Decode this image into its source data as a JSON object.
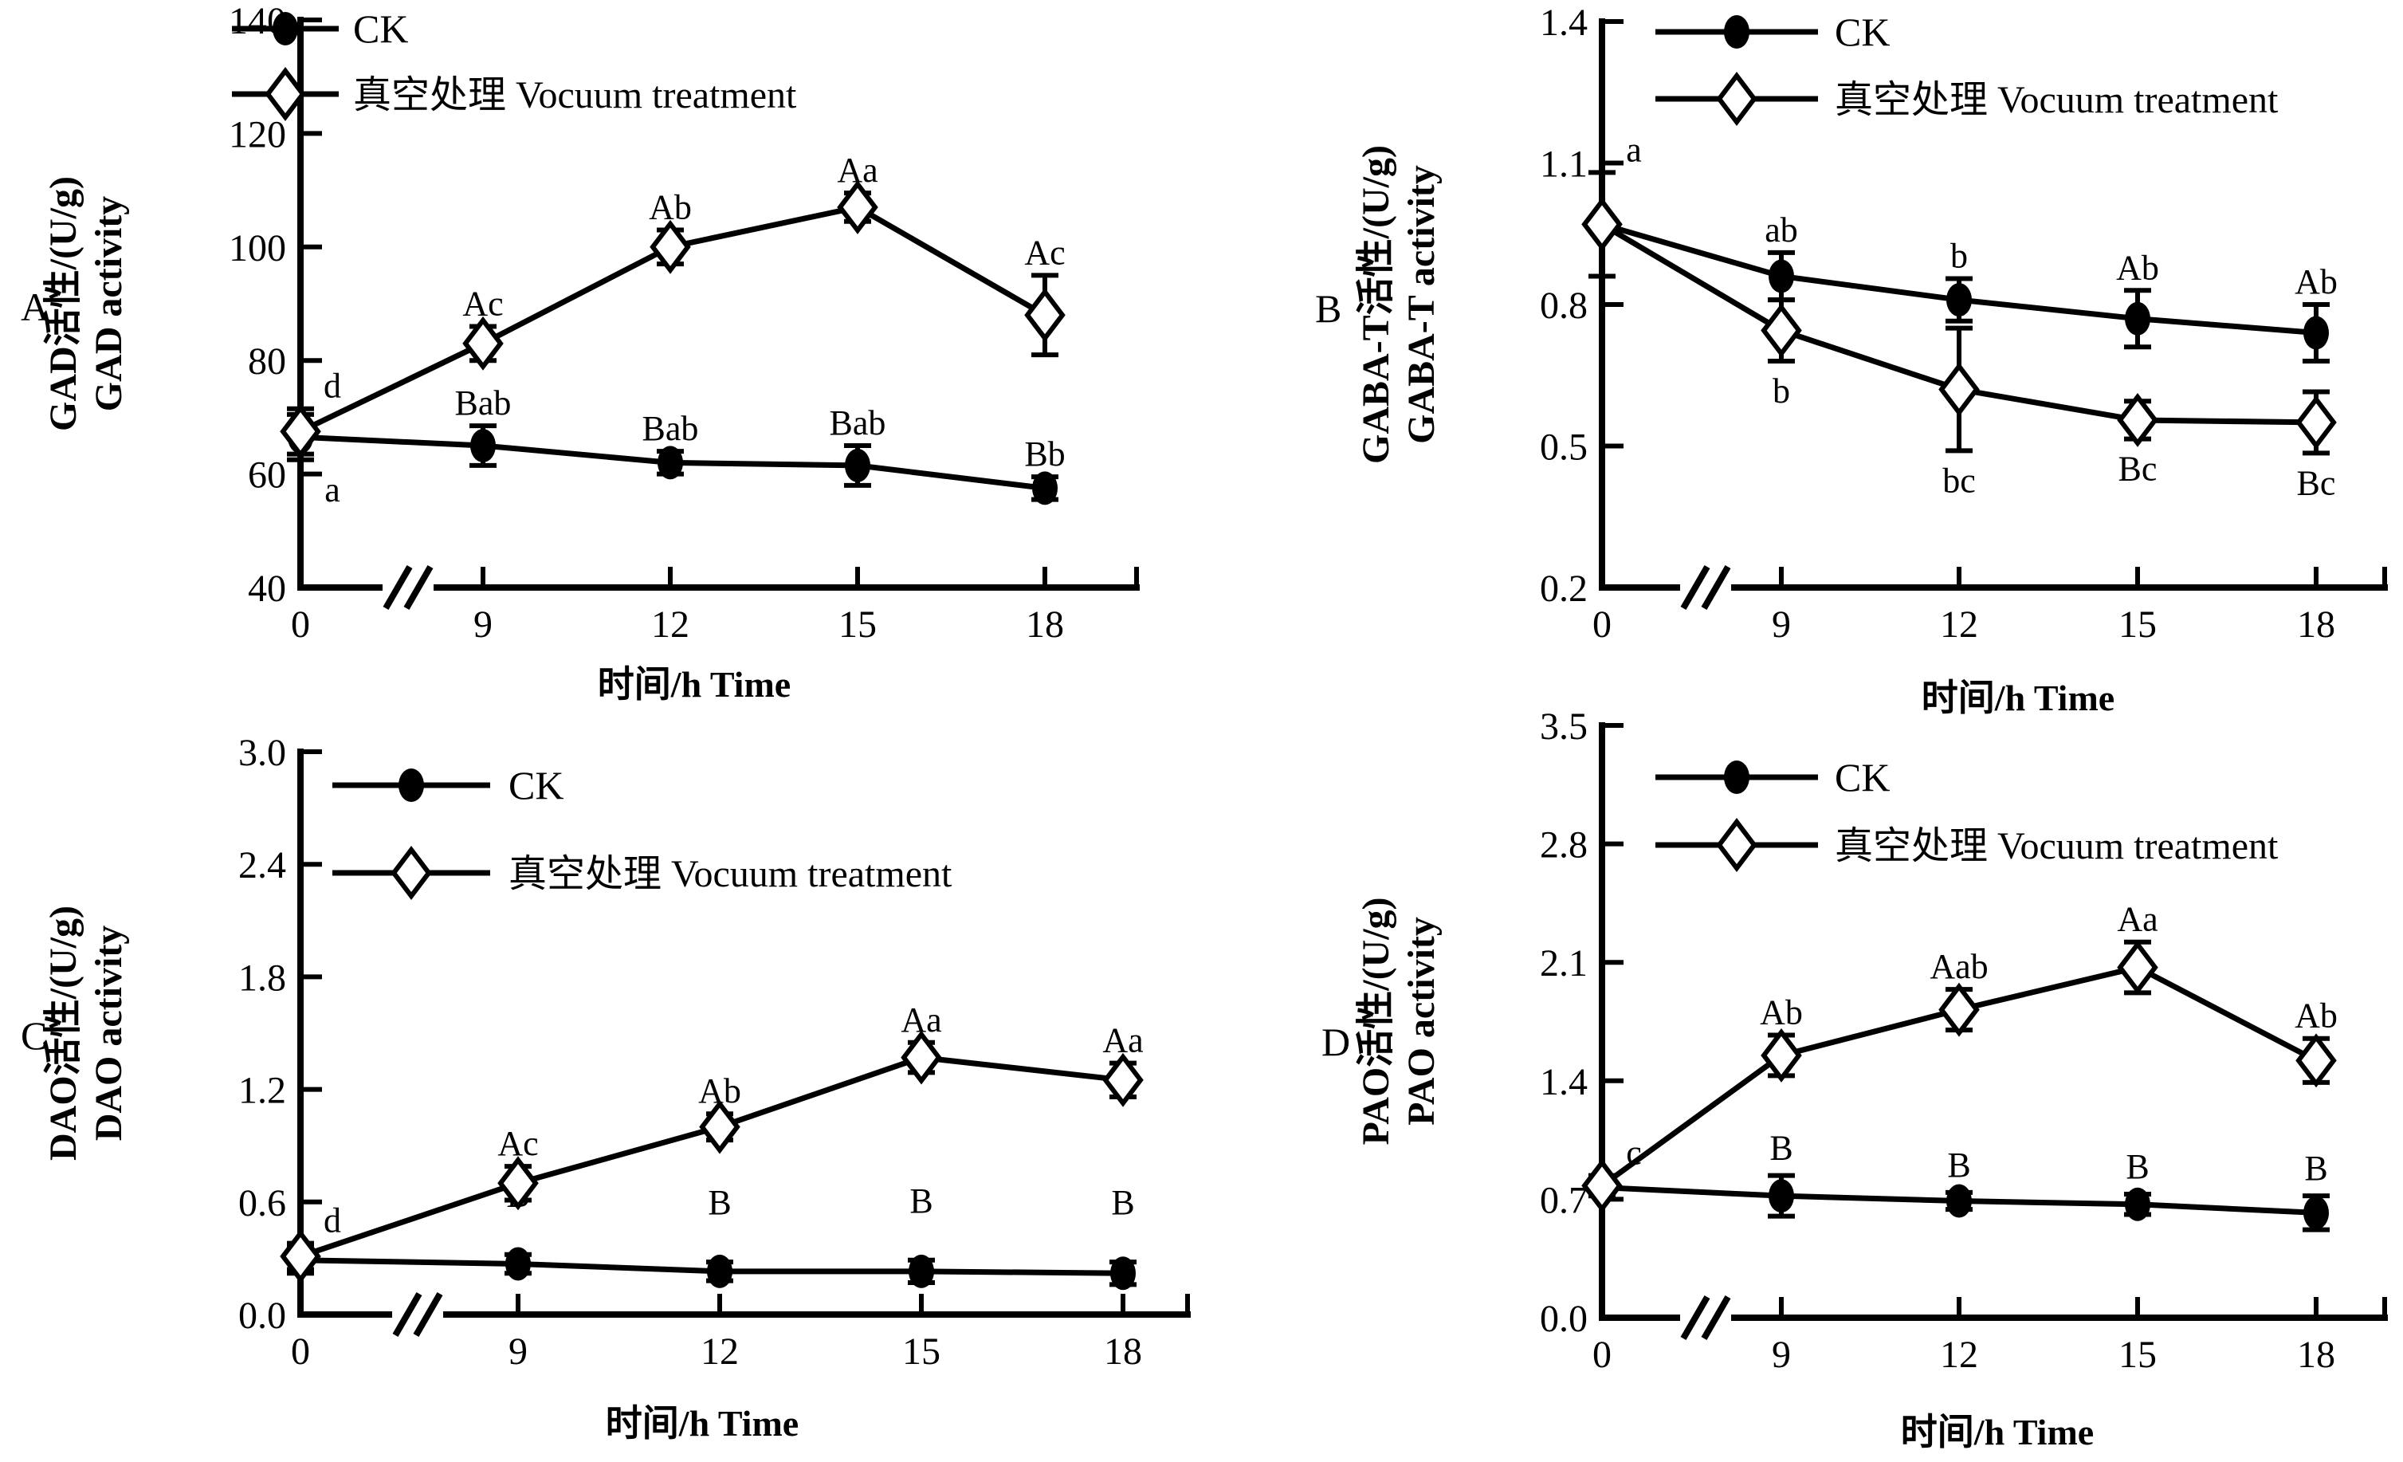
{
  "figure": {
    "background": "#ffffff",
    "ink": "#000000",
    "x_axis_label": "时间/h Time",
    "legend": {
      "ck_label": "CK",
      "treatment_label": "真空处理 Vocuum treatment"
    }
  },
  "chart_data": [
    {
      "id": "A",
      "type": "line",
      "panel_letter": "A",
      "ylabel_cn": "GAD活性/(U/g)",
      "ylabel_en": "GAD activity",
      "xlabel": "时间/h Time",
      "x": [
        0,
        9,
        12,
        15,
        18
      ],
      "xtick_labels": [
        "0",
        "9",
        "12",
        "15",
        "18"
      ],
      "x_axis_break": true,
      "ylim": [
        40,
        140
      ],
      "yticks": [
        {
          "v": 40,
          "label": "40"
        },
        {
          "v": 60,
          "label": "60"
        },
        {
          "v": 80,
          "label": "80"
        },
        {
          "v": 100,
          "label": "100"
        },
        {
          "v": 120,
          "label": "120"
        },
        {
          "v": 140,
          "label": "140"
        }
      ],
      "series": [
        {
          "name": "CK",
          "marker": "filled-circle",
          "values": [
            66.5,
            65,
            62,
            61.5,
            57.5
          ],
          "errors": [
            4,
            3.5,
            2,
            3.5,
            2
          ],
          "point_labels": [
            "a",
            "Bab",
            "Bab",
            "Bab",
            "Bb"
          ],
          "label_side": [
            "below",
            "above",
            "above",
            "above",
            "above"
          ]
        },
        {
          "name": "真空处理 Vocuum treatment",
          "marker": "open-diamond",
          "values": [
            67.5,
            83,
            100,
            107,
            88
          ],
          "errors": [
            4,
            3,
            3,
            2.5,
            7
          ],
          "point_labels": [
            "d",
            "Ac",
            "Ab",
            "Aa",
            "Ac"
          ],
          "label_side": [
            "above",
            "above",
            "above",
            "above",
            "above"
          ]
        }
      ]
    },
    {
      "id": "B",
      "type": "line",
      "panel_letter": "B",
      "ylabel_cn": "GABA-T活性/(U/g)",
      "ylabel_en": "GABA-T activity",
      "xlabel": "时间/h Time",
      "x": [
        0,
        9,
        12,
        15,
        18
      ],
      "xtick_labels": [
        "0",
        "9",
        "12",
        "15",
        "18"
      ],
      "x_axis_break": true,
      "ylim": [
        0.2,
        1.4
      ],
      "yticks": [
        {
          "v": 0.2,
          "label": "0.2"
        },
        {
          "v": 0.5,
          "label": "0.5"
        },
        {
          "v": 0.8,
          "label": "0.8"
        },
        {
          "v": 1.1,
          "label": "1.1"
        },
        {
          "v": 1.4,
          "label": "1.4"
        }
      ],
      "series": [
        {
          "name": "CK",
          "marker": "filled-circle",
          "values": [
            0.97,
            0.86,
            0.81,
            0.77,
            0.74
          ],
          "errors": [
            0.11,
            0.05,
            0.045,
            0.06,
            0.06
          ],
          "point_labels": [
            "a",
            "ab",
            "b",
            "Ab",
            "Ab"
          ],
          "label_side": [
            "above",
            "above",
            "above",
            "above",
            "above"
          ]
        },
        {
          "name": "真空处理 Vocuum treatment",
          "marker": "open-diamond",
          "values": [
            0.97,
            0.745,
            0.62,
            0.555,
            0.55
          ],
          "errors": [
            0,
            0.065,
            0.13,
            0.04,
            0.065
          ],
          "point_labels": [
            "",
            "b",
            "bc",
            "Bc",
            "Bc"
          ],
          "label_side": [
            "below",
            "below",
            "below",
            "below",
            "below"
          ]
        }
      ]
    },
    {
      "id": "C",
      "type": "line",
      "panel_letter": "C",
      "ylabel_cn": "DAO活性/(U/g)",
      "ylabel_en": "DAO activity",
      "xlabel": "时间/h Time",
      "x": [
        0,
        9,
        12,
        15,
        18
      ],
      "xtick_labels": [
        "0",
        "9",
        "12",
        "15",
        "18"
      ],
      "x_axis_break": true,
      "ylim": [
        0.0,
        3.0
      ],
      "yticks": [
        {
          "v": 0.0,
          "label": "0.0"
        },
        {
          "v": 0.6,
          "label": "0.6"
        },
        {
          "v": 1.2,
          "label": "1.2"
        },
        {
          "v": 1.8,
          "label": "1.8"
        },
        {
          "v": 2.4,
          "label": "2.4"
        },
        {
          "v": 3.0,
          "label": "3.0"
        }
      ],
      "series": [
        {
          "name": "CK",
          "marker": "filled-circle",
          "values": [
            0.29,
            0.27,
            0.23,
            0.23,
            0.22
          ],
          "errors": [
            0.07,
            0.05,
            0.05,
            0.06,
            0.06
          ],
          "point_labels": [
            "",
            "B",
            "B",
            "B",
            "B"
          ],
          "label_side": [
            "above",
            "above",
            "above",
            "above",
            "above"
          ]
        },
        {
          "name": "真空处理 Vocuum treatment",
          "marker": "open-diamond",
          "values": [
            0.31,
            0.7,
            1.0,
            1.37,
            1.25
          ],
          "errors": [
            0.07,
            0.09,
            0.07,
            0.08,
            0.09
          ],
          "point_labels": [
            "d",
            "Ac",
            "Ab",
            "Aa",
            "Aa"
          ],
          "label_side": [
            "above",
            "above",
            "above",
            "above",
            "above"
          ]
        }
      ]
    },
    {
      "id": "D",
      "type": "line",
      "panel_letter": "D",
      "ylabel_cn": "PAO活性/(U/g)",
      "ylabel_en": "PAO activity",
      "xlabel": "时间/h Time",
      "x": [
        0,
        9,
        12,
        15,
        18
      ],
      "xtick_labels": [
        "0",
        "9",
        "12",
        "15",
        "18"
      ],
      "x_axis_break": true,
      "ylim": [
        0.0,
        3.5
      ],
      "yticks": [
        {
          "v": 0.0,
          "label": "0.0"
        },
        {
          "v": 0.7,
          "label": "0.7"
        },
        {
          "v": 1.4,
          "label": "1.4"
        },
        {
          "v": 2.1,
          "label": "2.1"
        },
        {
          "v": 2.8,
          "label": "2.8"
        },
        {
          "v": 3.5,
          "label": "3.5"
        }
      ],
      "series": [
        {
          "name": "CK",
          "marker": "filled-circle",
          "values": [
            0.77,
            0.72,
            0.69,
            0.67,
            0.62
          ],
          "errors": [
            0.05,
            0.12,
            0.05,
            0.06,
            0.1
          ],
          "point_labels": [
            "",
            "B",
            "B",
            "B",
            "B"
          ],
          "label_side": [
            "above",
            "above",
            "above",
            "above",
            "above"
          ]
        },
        {
          "name": "真空处理 Vocuum treatment",
          "marker": "open-diamond",
          "values": [
            0.78,
            1.55,
            1.82,
            2.07,
            1.52
          ],
          "errors": [
            0.06,
            0.12,
            0.12,
            0.15,
            0.13
          ],
          "point_labels": [
            "c",
            "Ab",
            "Aab",
            "Aa",
            "Ab"
          ],
          "label_side": [
            "above",
            "above",
            "above",
            "above",
            "above"
          ]
        }
      ]
    }
  ]
}
